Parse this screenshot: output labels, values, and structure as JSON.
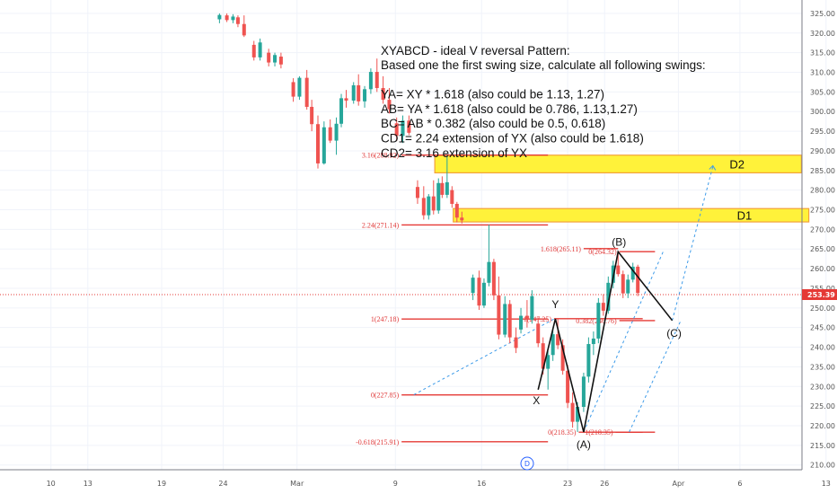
{
  "chart_data": {
    "type": "candlestick",
    "interval_badge": "D",
    "ylim": [
      206.5,
      327.5
    ],
    "y_ticks": [
      "210.00",
      "215.00",
      "220.00",
      "225.00",
      "230.00",
      "235.00",
      "240.00",
      "245.00",
      "250.00",
      "255.00",
      "260.00",
      "265.00",
      "270.00",
      "275.00",
      "280.00",
      "285.00",
      "290.00",
      "295.00",
      "300.00",
      "305.00",
      "310.00",
      "315.00",
      "320.00",
      "325.00"
    ],
    "x_ticks": [
      {
        "label": "10",
        "day": -19
      },
      {
        "label": "13",
        "day": -16
      },
      {
        "label": "19",
        "day": -10
      },
      {
        "label": "24",
        "day": -5
      },
      {
        "label": "Mar",
        "day": 1
      },
      {
        "label": "9",
        "day": 9
      },
      {
        "label": "16",
        "day": 16
      },
      {
        "label": "23",
        "day": 23
      },
      {
        "label": "26",
        "day": 26
      },
      {
        "label": "Apr",
        "day": 32
      },
      {
        "label": "6",
        "day": 37
      },
      {
        "label": "13",
        "day": 44
      }
    ],
    "current_price": {
      "label": "253.39",
      "value": 253.39
    },
    "annotation": {
      "title": "XYABCD -  ideal V reversal Pattern:",
      "lines": [
        "Based one the first swing size, calculate all following swings:",
        "",
        "YA= XY * 1.618  (also could be 1.13, 1.27)",
        "AB= YA * 1.618  (also could be 0.786, 1.13,1.27)",
        "BC= AB * 0.382  (also could be 0.5, 0.618)",
        "CD1= 2.24 extension of YX   (also could be 1.618)",
        "CD2= 3.16 extension of YX"
      ]
    },
    "zones": [
      {
        "label": "D2",
        "low": 284.4,
        "high": 288.9,
        "from_day": 12.2,
        "to_day": 42
      },
      {
        "label": "D1",
        "low": 271.9,
        "high": 275.3,
        "from_day": 13.7,
        "to_day": 42.6
      }
    ],
    "fib_levels": [
      {
        "label": "3.16(288.92)",
        "value": 288.92,
        "from_day": 9.5,
        "to_day": 21.4
      },
      {
        "label": "2.24(271.14)",
        "value": 271.14,
        "from_day": 9.5,
        "to_day": 21.4
      },
      {
        "label": "1(247.18)",
        "value": 247.18,
        "from_day": 9.5,
        "to_day": 21.4
      },
      {
        "label": "0(227.85)",
        "value": 227.85,
        "from_day": 9.5,
        "to_day": 21.4
      },
      {
        "label": "-0.618(215.91)",
        "value": 215.91,
        "from_day": 9.5,
        "to_day": 21.4
      },
      {
        "label": "1(247.25)",
        "value": 247.25,
        "from_day": 21.9,
        "to_day": 29.1
      },
      {
        "label": "0(218.35)",
        "value": 218.35,
        "from_day": 23.9,
        "to_day": 29.1
      },
      {
        "label": "1.618(265.11)",
        "value": 265.11,
        "from_day": 24.3,
        "to_day": 27.1
      },
      {
        "label": "0(264.32)",
        "value": 264.32,
        "from_day": 27.2,
        "to_day": 30.1
      },
      {
        "label": "0.382(246.76)",
        "value": 246.76,
        "from_day": 27.2,
        "to_day": 30.1
      },
      {
        "label": "1(218.35)",
        "value": 218.35,
        "from_day": 26.9,
        "to_day": 30.1
      }
    ],
    "wave_points": [
      {
        "label": "X",
        "day": 20.6,
        "value": 229.2
      },
      {
        "label": "Y",
        "day": 22.0,
        "value": 247.2
      },
      {
        "label": "(A)",
        "day": 24.3,
        "value": 218.4
      },
      {
        "label": "(B)",
        "day": 27.1,
        "value": 264.3
      },
      {
        "label": "(C)",
        "day": 31.5,
        "value": 246.8
      }
    ],
    "projections": [
      {
        "from": {
          "day": 10.5,
          "value": 227.9
        },
        "to": {
          "day": 21.9,
          "value": 247.2
        }
      },
      {
        "from": {
          "day": 24.3,
          "value": 218.4
        },
        "to": {
          "day": 30.8,
          "value": 264.6
        }
      },
      {
        "from": {
          "day": 28.0,
          "value": 218.4
        },
        "to": {
          "day": 32.2,
          "value": 246.8
        }
      },
      {
        "from": {
          "day": 31.5,
          "value": 246.8
        },
        "to": {
          "day": 34.8,
          "value": 286.0
        }
      }
    ],
    "candles": [
      {
        "day": -5.3,
        "o": 323.5,
        "h": 325.0,
        "l": 322.5,
        "c": 324.6
      },
      {
        "day": -4.7,
        "o": 324.5,
        "h": 325.0,
        "l": 322.8,
        "c": 323.3
      },
      {
        "day": -4.2,
        "o": 323.3,
        "h": 324.8,
        "l": 322.5,
        "c": 324.2
      },
      {
        "day": -3.8,
        "o": 324.0,
        "h": 324.5,
        "l": 321.5,
        "c": 322.3
      },
      {
        "day": -3.3,
        "o": 322.3,
        "h": 324.5,
        "l": 319.0,
        "c": 319.4
      },
      {
        "day": -2.5,
        "o": 317.0,
        "h": 318.0,
        "l": 313.0,
        "c": 313.8
      },
      {
        "day": -2.0,
        "o": 313.8,
        "h": 318.6,
        "l": 313.0,
        "c": 317.6
      },
      {
        "day": -1.3,
        "o": 315.0,
        "h": 316.0,
        "l": 311.5,
        "c": 312.5
      },
      {
        "day": -0.8,
        "o": 312.5,
        "h": 315.0,
        "l": 311.5,
        "c": 314.4
      },
      {
        "day": -0.3,
        "o": 314.0,
        "h": 315.0,
        "l": 311.0,
        "c": 312.0
      },
      {
        "day": 0.7,
        "o": 307.5,
        "h": 308.5,
        "l": 302.5,
        "c": 303.8
      },
      {
        "day": 1.2,
        "o": 303.8,
        "h": 309.0,
        "l": 303.0,
        "c": 308.6
      },
      {
        "day": 1.8,
        "o": 308.6,
        "h": 310.6,
        "l": 300.5,
        "c": 301.2
      },
      {
        "day": 2.2,
        "o": 301.2,
        "h": 303.0,
        "l": 295.0,
        "c": 296.8
      },
      {
        "day": 2.7,
        "o": 296.8,
        "h": 299.0,
        "l": 285.5,
        "c": 286.8
      },
      {
        "day": 3.2,
        "o": 286.8,
        "h": 297.5,
        "l": 286.5,
        "c": 296.0
      },
      {
        "day": 3.7,
        "o": 296.0,
        "h": 298.0,
        "l": 292.0,
        "c": 292.6
      },
      {
        "day": 4.2,
        "o": 292.6,
        "h": 298.5,
        "l": 289.0,
        "c": 296.9
      },
      {
        "day": 4.6,
        "o": 296.9,
        "h": 304.5,
        "l": 296.0,
        "c": 303.4
      },
      {
        "day": 5.0,
        "o": 303.4,
        "h": 305.5,
        "l": 301.0,
        "c": 302.8
      },
      {
        "day": 5.6,
        "o": 302.8,
        "h": 307.5,
        "l": 302.0,
        "c": 306.7
      },
      {
        "day": 6.0,
        "o": 306.7,
        "h": 309.5,
        "l": 301.5,
        "c": 302.6
      },
      {
        "day": 6.5,
        "o": 302.6,
        "h": 306.5,
        "l": 301.0,
        "c": 305.7
      },
      {
        "day": 7.0,
        "o": 305.7,
        "h": 311.0,
        "l": 304.5,
        "c": 310.1
      },
      {
        "day": 7.5,
        "o": 310.1,
        "h": 313.5,
        "l": 305.0,
        "c": 306.0
      },
      {
        "day": 8.0,
        "o": 306.0,
        "h": 309.0,
        "l": 302.0,
        "c": 303.0
      },
      {
        "day": 8.5,
        "o": 303.0,
        "h": 306.0,
        "l": 299.5,
        "c": 300.6
      },
      {
        "day": 9.1,
        "o": 297.0,
        "h": 298.5,
        "l": 292.5,
        "c": 293.8
      },
      {
        "day": 9.6,
        "o": 293.8,
        "h": 299.0,
        "l": 292.0,
        "c": 297.7
      },
      {
        "day": 10.1,
        "o": 297.7,
        "h": 299.0,
        "l": 294.0,
        "c": 294.6
      },
      {
        "day": 10.8,
        "o": 280.8,
        "h": 282.5,
        "l": 276.5,
        "c": 278.0
      },
      {
        "day": 11.3,
        "o": 278.0,
        "h": 281.0,
        "l": 272.5,
        "c": 273.6
      },
      {
        "day": 11.7,
        "o": 273.6,
        "h": 279.0,
        "l": 272.5,
        "c": 278.4
      },
      {
        "day": 12.1,
        "o": 278.4,
        "h": 282.5,
        "l": 273.8,
        "c": 274.8
      },
      {
        "day": 12.5,
        "o": 274.8,
        "h": 283.0,
        "l": 274.0,
        "c": 281.8
      },
      {
        "day": 12.8,
        "o": 281.8,
        "h": 283.5,
        "l": 278.0,
        "c": 278.8
      },
      {
        "day": 13.2,
        "o": 278.8,
        "h": 288.9,
        "l": 278.0,
        "c": 282.0
      },
      {
        "day": 13.6,
        "o": 280.0,
        "h": 281.0,
        "l": 275.5,
        "c": 276.5
      },
      {
        "day": 14.0,
        "o": 276.5,
        "h": 277.0,
        "l": 271.8,
        "c": 273.0
      },
      {
        "day": 14.4,
        "o": 273.0,
        "h": 274.5,
        "l": 271.5,
        "c": 272.3
      },
      {
        "day": 15.3,
        "o": 253.8,
        "h": 258.5,
        "l": 252.0,
        "c": 257.7
      },
      {
        "day": 15.8,
        "o": 257.7,
        "h": 259.5,
        "l": 249.5,
        "c": 250.6
      },
      {
        "day": 16.2,
        "o": 250.6,
        "h": 257.5,
        "l": 250.0,
        "c": 256.4
      },
      {
        "day": 16.6,
        "o": 256.4,
        "h": 271.2,
        "l": 255.5,
        "c": 261.7
      },
      {
        "day": 17.0,
        "o": 261.7,
        "h": 262.5,
        "l": 252.0,
        "c": 253.2
      },
      {
        "day": 17.4,
        "o": 253.2,
        "h": 258.0,
        "l": 242.0,
        "c": 243.2
      },
      {
        "day": 17.9,
        "o": 243.2,
        "h": 253.0,
        "l": 242.5,
        "c": 251.0
      },
      {
        "day": 18.3,
        "o": 251.0,
        "h": 252.0,
        "l": 241.0,
        "c": 242.5
      },
      {
        "day": 18.8,
        "o": 242.5,
        "h": 245.0,
        "l": 238.5,
        "c": 239.8
      },
      {
        "day": 19.2,
        "o": 244.5,
        "h": 250.0,
        "l": 243.5,
        "c": 248.0
      },
      {
        "day": 19.7,
        "o": 248.0,
        "h": 252.0,
        "l": 245.0,
        "c": 247.2
      },
      {
        "day": 20.1,
        "o": 247.0,
        "h": 254.5,
        "l": 246.0,
        "c": 253.0
      },
      {
        "day": 20.6,
        "o": 246.0,
        "h": 247.5,
        "l": 240.0,
        "c": 241.0
      },
      {
        "day": 21.0,
        "o": 241.0,
        "h": 242.5,
        "l": 233.0,
        "c": 234.5
      },
      {
        "day": 21.4,
        "o": 234.5,
        "h": 239.0,
        "l": 229.2,
        "c": 238.0
      },
      {
        "day": 21.8,
        "o": 238.0,
        "h": 244.5,
        "l": 236.5,
        "c": 243.3
      },
      {
        "day": 22.2,
        "o": 243.3,
        "h": 247.2,
        "l": 239.5,
        "c": 240.5
      },
      {
        "day": 22.6,
        "o": 240.5,
        "h": 242.0,
        "l": 233.0,
        "c": 234.0
      },
      {
        "day": 23.0,
        "o": 234.0,
        "h": 235.5,
        "l": 224.5,
        "c": 225.8
      },
      {
        "day": 23.4,
        "o": 225.8,
        "h": 228.5,
        "l": 219.5,
        "c": 221.0
      },
      {
        "day": 23.8,
        "o": 221.0,
        "h": 226.0,
        "l": 218.4,
        "c": 224.8
      },
      {
        "day": 24.3,
        "o": 224.8,
        "h": 233.5,
        "l": 223.5,
        "c": 232.5
      },
      {
        "day": 24.7,
        "o": 232.5,
        "h": 242.5,
        "l": 231.0,
        "c": 240.8
      },
      {
        "day": 25.1,
        "o": 240.8,
        "h": 244.0,
        "l": 238.0,
        "c": 242.2
      },
      {
        "day": 25.5,
        "o": 242.2,
        "h": 252.5,
        "l": 241.0,
        "c": 251.3
      },
      {
        "day": 25.9,
        "o": 251.3,
        "h": 253.5,
        "l": 248.0,
        "c": 249.3
      },
      {
        "day": 26.3,
        "o": 249.3,
        "h": 258.0,
        "l": 248.5,
        "c": 256.4
      },
      {
        "day": 26.7,
        "o": 256.4,
        "h": 262.0,
        "l": 255.0,
        "c": 260.8
      },
      {
        "day": 27.1,
        "o": 260.8,
        "h": 264.3,
        "l": 258.0,
        "c": 258.6
      },
      {
        "day": 27.5,
        "o": 258.6,
        "h": 259.5,
        "l": 252.5,
        "c": 253.7
      },
      {
        "day": 27.9,
        "o": 253.7,
        "h": 258.5,
        "l": 252.5,
        "c": 257.2
      },
      {
        "day": 28.3,
        "o": 257.2,
        "h": 261.5,
        "l": 256.5,
        "c": 260.5
      },
      {
        "day": 28.7,
        "o": 260.5,
        "h": 261.0,
        "l": 253.0,
        "c": 253.8
      }
    ]
  }
}
